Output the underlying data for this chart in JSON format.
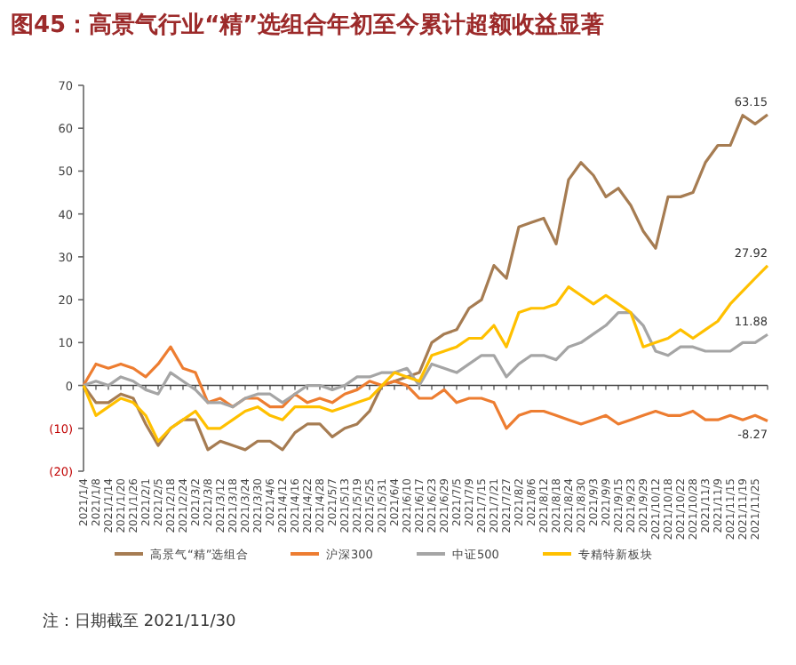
{
  "chart_data": {
    "type": "line",
    "title": "图45：高景气行业“精”选组合年初至今累计超额收益显著",
    "categories": [
      "2021/1/4",
      "2021/1/8",
      "2021/1/14",
      "2021/1/20",
      "2021/1/26",
      "2021/2/1",
      "2021/2/5",
      "2021/2/18",
      "2021/2/24",
      "2021/3/2",
      "2021/3/8",
      "2021/3/12",
      "2021/3/18",
      "2021/3/24",
      "2021/3/30",
      "2021/4/6",
      "2021/4/12",
      "2021/4/16",
      "2021/4/22",
      "2021/4/28",
      "2021/5/7",
      "2021/5/13",
      "2021/5/19",
      "2021/5/25",
      "2021/5/31",
      "2021/6/4",
      "2021/6/10",
      "2021/6/17",
      "2021/6/23",
      "2021/6/29",
      "2021/7/5",
      "2021/7/9",
      "2021/7/15",
      "2021/7/21",
      "2021/7/27",
      "2021/8/2",
      "2021/8/6",
      "2021/8/12",
      "2021/8/18",
      "2021/8/24",
      "2021/8/30",
      "2021/9/3",
      "2021/9/9",
      "2021/9/15",
      "2021/9/23",
      "2021/9/29",
      "2021/10/12",
      "2021/10/18",
      "2021/10/22",
      "2021/10/28",
      "2021/11/3",
      "2021/11/9",
      "2021/11/15",
      "2021/11/19",
      "2021/11/25",
      null
    ],
    "series": [
      {
        "name": "高景气“精”选组合",
        "color": "#a67c52",
        "values": [
          0,
          -4,
          -4,
          -2,
          -3,
          -9,
          -14,
          -10,
          -8,
          -8,
          -15,
          -13,
          -14,
          -15,
          -13,
          -13,
          -15,
          -11,
          -9,
          -9,
          -12,
          -10,
          -9,
          -6,
          0,
          1,
          2,
          3,
          10,
          12,
          13,
          18,
          20,
          28,
          25,
          37,
          38,
          39,
          33,
          48,
          52,
          49,
          44,
          46,
          42,
          36,
          32,
          44,
          44,
          45,
          52,
          56,
          56,
          63,
          61,
          63.15
        ],
        "value_labels": [
          null,
          null,
          null,
          null,
          null,
          null,
          null,
          null,
          null,
          null,
          null,
          null,
          null,
          null,
          null,
          null,
          null,
          null,
          null,
          null,
          null,
          null,
          null,
          null,
          null,
          null,
          null,
          null,
          null,
          null,
          null,
          null,
          null,
          null,
          null,
          null,
          null,
          null,
          null,
          null,
          null,
          null,
          null,
          null,
          null,
          null,
          null,
          null,
          null,
          null,
          null,
          null,
          null,
          null,
          null,
          "63.15"
        ]
      },
      {
        "name": "沪深300",
        "color": "#ed7d31",
        "values": [
          0,
          5,
          4,
          5,
          4,
          2,
          5,
          9,
          4,
          3,
          -4,
          -3,
          -5,
          -3,
          -3,
          -5,
          -5,
          -2,
          -4,
          -3,
          -4,
          -2,
          -1,
          1,
          0,
          1,
          0,
          -3,
          -3,
          -1,
          -4,
          -3,
          -3,
          -4,
          -10,
          -7,
          -6,
          -6,
          -7,
          -8,
          -9,
          -8,
          -7,
          -9,
          -8,
          -7,
          -6,
          -7,
          -7,
          -6,
          -8,
          -8,
          -7,
          -8,
          -7,
          -8.27
        ],
        "value_labels": [
          null,
          null,
          null,
          null,
          null,
          null,
          null,
          null,
          null,
          null,
          null,
          null,
          null,
          null,
          null,
          null,
          null,
          null,
          null,
          null,
          null,
          null,
          null,
          null,
          null,
          null,
          null,
          null,
          null,
          null,
          null,
          null,
          null,
          null,
          null,
          null,
          null,
          null,
          null,
          null,
          null,
          null,
          null,
          null,
          null,
          null,
          null,
          null,
          null,
          null,
          null,
          null,
          null,
          null,
          null,
          "-8.27"
        ]
      },
      {
        "name": "中证500",
        "color": "#a5a5a5",
        "values": [
          0,
          1,
          0,
          2,
          1,
          -1,
          -2,
          3,
          1,
          -1,
          -4,
          -4,
          -5,
          -3,
          -2,
          -2,
          -4,
          -2,
          0,
          0,
          -1,
          0,
          2,
          2,
          3,
          3,
          4,
          0,
          5,
          4,
          3,
          5,
          7,
          7,
          2,
          5,
          7,
          7,
          6,
          9,
          10,
          12,
          14,
          17,
          17,
          14,
          8,
          7,
          9,
          9,
          8,
          8,
          8,
          10,
          10,
          11.88
        ],
        "value_labels": [
          null,
          null,
          null,
          null,
          null,
          null,
          null,
          null,
          null,
          null,
          null,
          null,
          null,
          null,
          null,
          null,
          null,
          null,
          null,
          null,
          null,
          null,
          null,
          null,
          null,
          null,
          null,
          null,
          null,
          null,
          null,
          null,
          null,
          null,
          null,
          null,
          null,
          null,
          null,
          null,
          null,
          null,
          null,
          null,
          null,
          null,
          null,
          null,
          null,
          null,
          null,
          null,
          null,
          null,
          null,
          "11.88"
        ]
      },
      {
        "name": "专精特新板块",
        "color": "#ffc000",
        "values": [
          0,
          -7,
          -5,
          -3,
          -4,
          -7,
          -13,
          -10,
          -8,
          -6,
          -10,
          -10,
          -8,
          -6,
          -5,
          -7,
          -8,
          -5,
          -5,
          -5,
          -6,
          -5,
          -4,
          -3,
          0,
          3,
          2,
          1,
          7,
          8,
          9,
          11,
          11,
          14,
          9,
          17,
          18,
          18,
          19,
          23,
          21,
          19,
          21,
          19,
          17,
          9,
          10,
          11,
          13,
          11,
          13,
          15,
          19,
          22,
          25,
          27.92
        ],
        "value_labels": [
          null,
          null,
          null,
          null,
          null,
          null,
          null,
          null,
          null,
          null,
          null,
          null,
          null,
          null,
          null,
          null,
          null,
          null,
          null,
          null,
          null,
          null,
          null,
          null,
          null,
          null,
          null,
          null,
          null,
          null,
          null,
          null,
          null,
          null,
          null,
          null,
          null,
          null,
          null,
          null,
          null,
          null,
          null,
          null,
          null,
          null,
          null,
          null,
          null,
          null,
          null,
          null,
          null,
          null,
          null,
          "27.92"
        ]
      }
    ],
    "ylim": [
      -20,
      70
    ],
    "yticks": [
      {
        "value": -20,
        "label": "(20)"
      },
      {
        "value": -10,
        "label": "(10)"
      },
      0,
      10,
      20,
      30,
      40,
      50,
      60,
      70
    ],
    "legend": "bottom",
    "annotations": [
      "注：日期截至 2021/11/30"
    ]
  }
}
